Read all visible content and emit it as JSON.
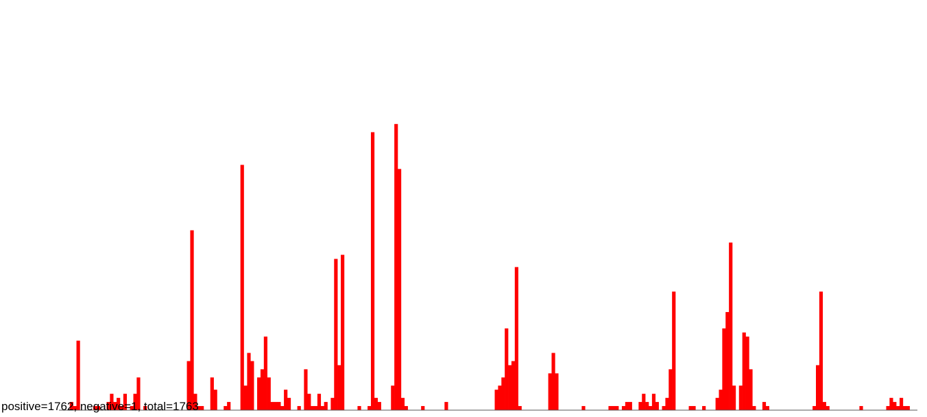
{
  "summary_text": "positive=1762, negative=1, total=1763",
  "colors": {
    "positive": "#ff0000",
    "negative": "#0000ff",
    "baseline": "#555555"
  },
  "chart_data": {
    "type": "bar",
    "title": "",
    "xlabel": "",
    "ylabel": "",
    "ylim": [
      0,
      100
    ],
    "grid": false,
    "legend": "none",
    "series": [
      {
        "values": [
          0,
          0,
          2,
          1,
          17,
          0,
          0,
          0,
          0,
          1,
          1,
          0,
          0,
          2,
          4,
          2,
          3,
          1,
          4,
          0,
          1,
          4,
          8,
          0,
          1,
          0,
          0,
          0,
          0,
          0,
          0,
          0,
          0,
          0,
          0,
          0,
          0,
          12,
          44,
          4,
          1,
          1,
          0,
          0,
          8,
          5,
          0,
          0,
          1,
          2,
          0,
          0,
          0,
          60,
          6,
          14,
          12,
          0,
          8,
          10,
          18,
          8,
          2,
          2,
          2,
          1,
          5,
          3,
          0,
          0,
          1,
          0,
          10,
          4,
          1,
          1,
          4,
          1,
          2,
          0,
          3,
          37,
          11,
          38,
          0,
          0,
          0,
          0,
          1,
          0,
          0,
          1,
          68,
          3,
          2,
          0,
          0,
          0,
          6,
          70,
          59,
          3,
          1,
          0,
          0,
          0,
          0,
          1,
          0,
          0,
          0,
          0,
          0,
          0,
          2,
          0,
          0,
          0,
          0,
          0,
          0,
          0,
          0,
          0,
          0,
          0,
          0,
          0,
          0,
          5,
          6,
          8,
          20,
          11,
          12,
          35,
          1,
          0,
          0,
          0,
          0,
          0,
          0,
          0,
          0,
          9,
          14,
          9,
          0,
          0,
          0,
          0,
          0,
          0,
          0,
          1,
          0,
          0,
          0,
          0,
          0,
          0,
          0,
          1,
          1,
          1,
          0,
          1,
          2,
          2,
          0,
          0,
          2,
          4,
          2,
          1,
          4,
          2,
          0,
          1,
          3,
          10,
          29,
          0,
          0,
          0,
          0,
          1,
          1,
          0,
          0,
          1,
          0,
          0,
          0,
          3,
          5,
          20,
          24,
          41,
          6,
          0,
          6,
          19,
          18,
          10,
          1,
          0,
          0,
          2,
          1,
          0,
          0,
          0,
          0,
          0,
          0,
          0,
          0,
          0,
          0,
          0,
          0,
          0,
          1,
          11,
          29,
          2,
          1,
          0,
          0,
          0,
          0,
          0,
          0,
          0,
          0,
          0,
          1,
          0,
          0,
          0,
          0,
          0,
          0,
          0,
          1,
          3,
          2,
          1,
          3,
          1,
          1,
          0,
          0,
          0,
          0,
          0,
          0
        ]
      }
    ],
    "negative_bins": [
      254
    ]
  }
}
